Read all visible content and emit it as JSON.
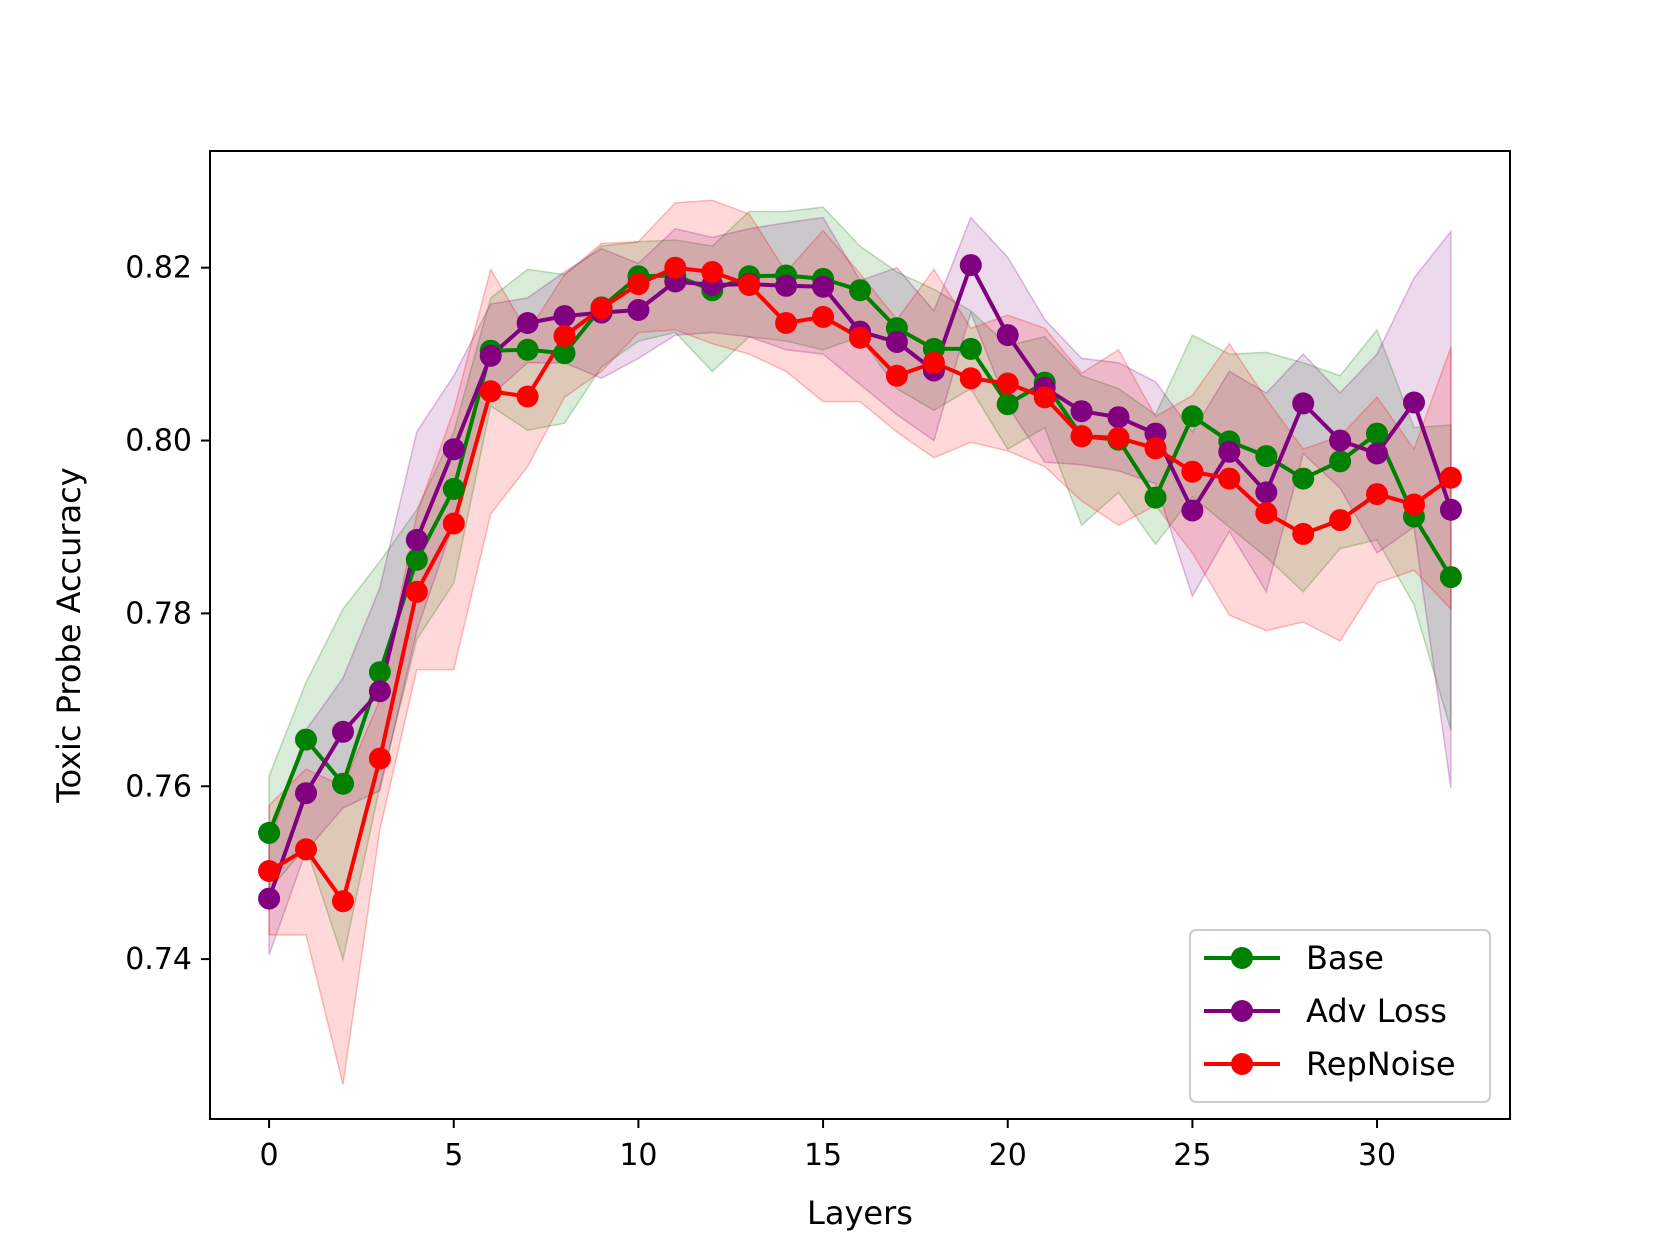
{
  "chart_data": {
    "type": "line",
    "title": "",
    "xlabel": "Layers",
    "ylabel": "Toxic Probe Accuracy",
    "xlim": [
      -1.6,
      33.6
    ],
    "ylim": [
      0.7215,
      0.8335
    ],
    "xticks": [
      0,
      5,
      10,
      15,
      20,
      25,
      30
    ],
    "yticks": [
      0.74,
      0.76,
      0.78,
      0.8,
      0.82
    ],
    "ytick_labels": [
      "0.74",
      "0.76",
      "0.78",
      "0.80",
      "0.82"
    ],
    "legend_position": "lower-right",
    "x": [
      0,
      1,
      2,
      3,
      4,
      5,
      6,
      7,
      8,
      9,
      10,
      11,
      12,
      13,
      14,
      15,
      16,
      17,
      18,
      19,
      20,
      21,
      22,
      23,
      24,
      25,
      26,
      27,
      28,
      29,
      30,
      31,
      32
    ],
    "series": [
      {
        "name": "Base",
        "color": "#008000",
        "values": [
          0.7546,
          0.7654,
          0.7603,
          0.7732,
          0.7862,
          0.7944,
          0.8104,
          0.8105,
          0.8101,
          0.8154,
          0.819,
          0.8191,
          0.8174,
          0.819,
          0.8191,
          0.8187,
          0.8174,
          0.813,
          0.8106,
          0.8106,
          0.8042,
          0.8067,
          0.8005,
          0.8001,
          0.7934,
          0.8028,
          0.7999,
          0.7982,
          0.7956,
          0.7976,
          0.8008,
          0.7912,
          0.7842
        ],
        "upper": [
          0.7612,
          0.772,
          0.7805,
          0.786,
          0.792,
          0.801,
          0.8165,
          0.8198,
          0.8192,
          0.8225,
          0.823,
          0.8232,
          0.8225,
          0.8265,
          0.8265,
          0.827,
          0.8225,
          0.8195,
          0.8175,
          0.815,
          0.811,
          0.812,
          0.8075,
          0.806,
          0.803,
          0.8122,
          0.81,
          0.8102,
          0.809,
          0.8075,
          0.8128,
          0.8015,
          0.8018
        ],
        "lower": [
          0.748,
          0.753,
          0.74,
          0.76,
          0.777,
          0.7835,
          0.804,
          0.8012,
          0.802,
          0.8085,
          0.8115,
          0.8125,
          0.808,
          0.812,
          0.8115,
          0.8105,
          0.812,
          0.806,
          0.8035,
          0.806,
          0.799,
          0.8015,
          0.7902,
          0.794,
          0.788,
          0.7935,
          0.79,
          0.7865,
          0.7825,
          0.7875,
          0.7885,
          0.781,
          0.7665
        ]
      },
      {
        "name": "Adv Loss",
        "color": "#800080",
        "values": [
          0.747,
          0.7592,
          0.7663,
          0.771,
          0.7885,
          0.799,
          0.8098,
          0.8136,
          0.8144,
          0.8148,
          0.8151,
          0.8184,
          0.818,
          0.8181,
          0.8179,
          0.8178,
          0.8126,
          0.8114,
          0.8081,
          0.8203,
          0.8122,
          0.8061,
          0.8034,
          0.8027,
          0.8008,
          0.7919,
          0.7987,
          0.794,
          0.8043,
          0.8,
          0.7985,
          0.8044,
          0.792
        ],
        "upper": [
          0.7532,
          0.7665,
          0.7725,
          0.783,
          0.801,
          0.8075,
          0.8158,
          0.8165,
          0.8195,
          0.8222,
          0.8205,
          0.8245,
          0.8235,
          0.8245,
          0.8252,
          0.8258,
          0.8185,
          0.82,
          0.815,
          0.8258,
          0.8212,
          0.814,
          0.8095,
          0.809,
          0.8068,
          0.801,
          0.808,
          0.8055,
          0.81,
          0.8055,
          0.81,
          0.8188,
          0.8242
        ],
        "lower": [
          0.7405,
          0.7525,
          0.7575,
          0.7595,
          0.778,
          0.7905,
          0.8052,
          0.809,
          0.809,
          0.8072,
          0.8095,
          0.8122,
          0.8125,
          0.812,
          0.8105,
          0.81,
          0.8065,
          0.803,
          0.8,
          0.8148,
          0.804,
          0.7975,
          0.7972,
          0.7965,
          0.795,
          0.782,
          0.7895,
          0.7825,
          0.7985,
          0.7945,
          0.787,
          0.79,
          0.7598
        ]
      },
      {
        "name": "RepNoise",
        "color": "#ff0000",
        "values": [
          0.7502,
          0.7527,
          0.7467,
          0.7632,
          0.7825,
          0.7904,
          0.8057,
          0.8051,
          0.8121,
          0.8153,
          0.8181,
          0.82,
          0.8195,
          0.818,
          0.8136,
          0.8143,
          0.8119,
          0.8075,
          0.809,
          0.8072,
          0.8066,
          0.805,
          0.8005,
          0.8003,
          0.7991,
          0.7964,
          0.7956,
          0.7916,
          0.7892,
          0.7908,
          0.7938,
          0.7926,
          0.7957
        ],
        "upper": [
          0.7578,
          0.762,
          0.76,
          0.77,
          0.7915,
          0.8035,
          0.8198,
          0.8125,
          0.8192,
          0.8228,
          0.823,
          0.8275,
          0.8278,
          0.8262,
          0.8195,
          0.8243,
          0.8193,
          0.814,
          0.8198,
          0.813,
          0.8145,
          0.813,
          0.8078,
          0.8105,
          0.8028,
          0.8052,
          0.8112,
          0.8048,
          0.799,
          0.8005,
          0.805,
          0.799,
          0.8108
        ],
        "lower": [
          0.7428,
          0.7428,
          0.7255,
          0.755,
          0.7735,
          0.7735,
          0.7915,
          0.797,
          0.805,
          0.808,
          0.8125,
          0.8128,
          0.8112,
          0.81,
          0.808,
          0.8045,
          0.8045,
          0.801,
          0.798,
          0.7998,
          0.7988,
          0.797,
          0.793,
          0.7902,
          0.7925,
          0.787,
          0.7798,
          0.778,
          0.779,
          0.7768,
          0.7835,
          0.785,
          0.7805
        ]
      }
    ]
  }
}
